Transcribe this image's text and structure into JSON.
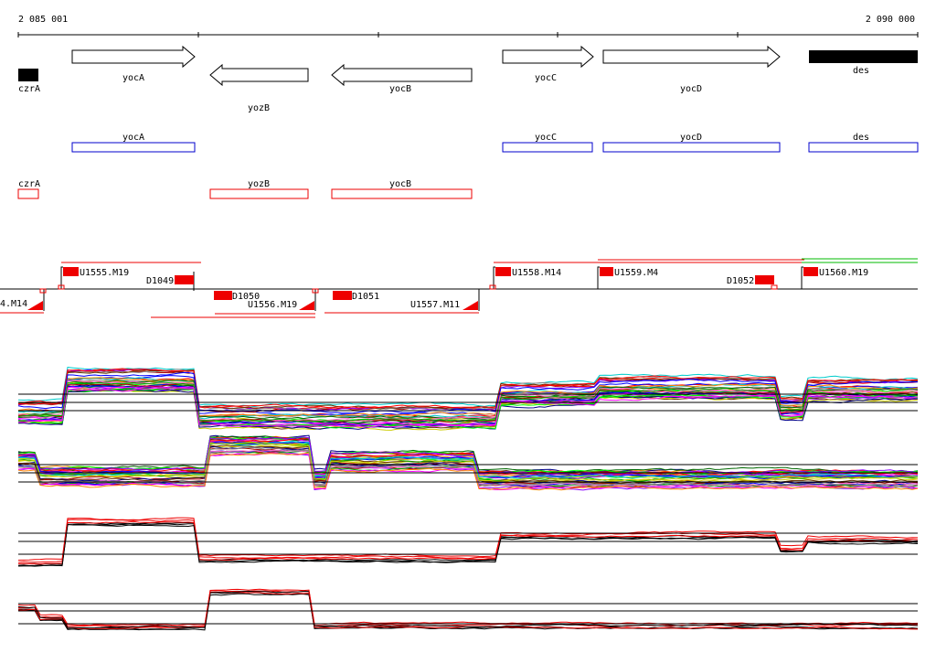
{
  "ruler": {
    "start_label": "2 085 001",
    "end_label": "2 090 000"
  },
  "genes": [
    {
      "name": "czrA",
      "strand": "box"
    },
    {
      "name": "yocA",
      "strand": "+"
    },
    {
      "name": "yozB",
      "strand": "-"
    },
    {
      "name": "yocB",
      "strand": "-"
    },
    {
      "name": "yocC",
      "strand": "+"
    },
    {
      "name": "yocD",
      "strand": "+"
    },
    {
      "name": "des",
      "strand": "box"
    }
  ],
  "blue_boxes": [
    "yocA",
    "yocC",
    "yocD",
    "des"
  ],
  "red_boxes": [
    "czrA",
    "yozB",
    "yocB"
  ],
  "upper_labels": [
    "U1555.M19",
    "U1558.M14",
    "U1559.M4",
    "U1560.M19"
  ],
  "lower_labels": [
    "4.M14",
    "U1556.M19",
    "U1557.M11"
  ],
  "d_labels": [
    "D1049",
    "D1050",
    "D1051",
    "D1052"
  ],
  "colors": {
    "gene_box": "#000000",
    "annotation_blue": "#0000cc",
    "annotation_red": "#ee0000",
    "promoter": "#ee0000",
    "baseline": "#000000"
  },
  "profile_palette": [
    "#ff0000",
    "#00aa00",
    "#0000ff",
    "#ff00ff",
    "#00cccc",
    "#cccc00",
    "#ff8800",
    "#8800ff",
    "#888888",
    "#006600",
    "#aa0000",
    "#000088",
    "#00ff00",
    "#ff66cc",
    "#663300"
  ]
}
